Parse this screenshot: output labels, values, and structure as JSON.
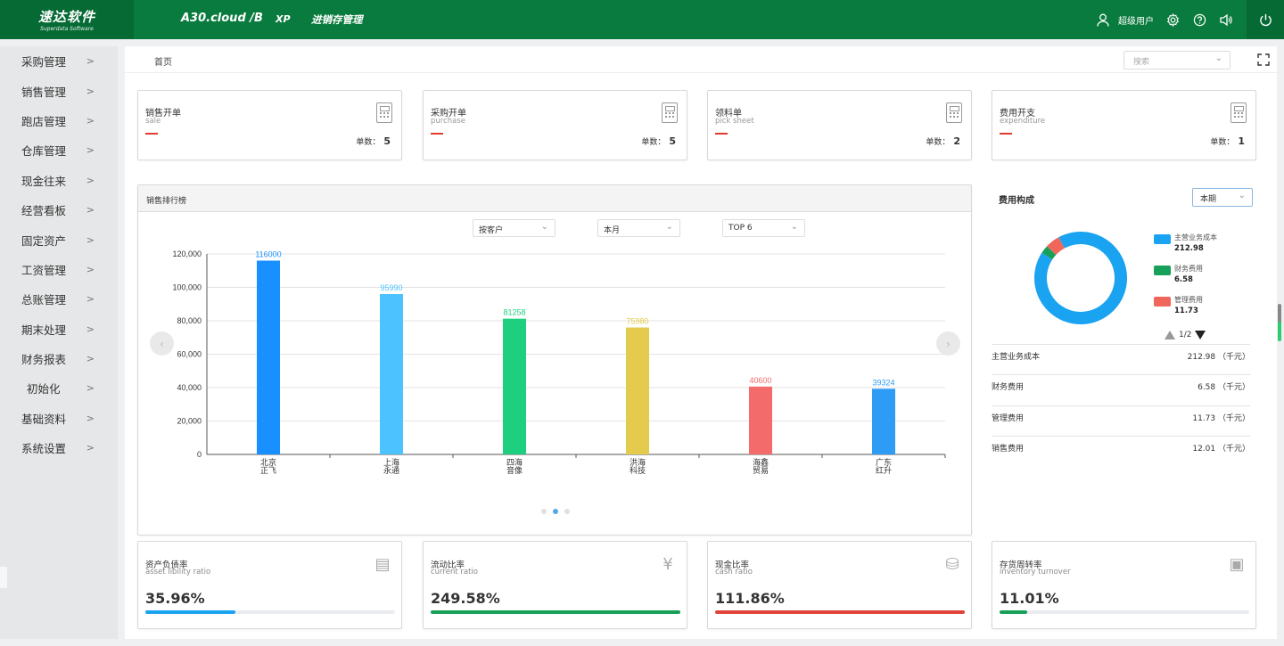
{
  "header": {
    "logo_cn": "速达软件",
    "logo_en": "Superdata Software",
    "product": "A30.cloud /B",
    "edition": "XP",
    "module": "进销存管理",
    "user": "超级用户"
  },
  "sidebar": {
    "items": [
      {
        "label": "采购管理"
      },
      {
        "label": "销售管理"
      },
      {
        "label": "跑店管理"
      },
      {
        "label": "仓库管理"
      },
      {
        "label": "现金往来"
      },
      {
        "label": "经营看板"
      },
      {
        "label": "固定资产"
      },
      {
        "label": "工资管理"
      },
      {
        "label": "总账管理"
      },
      {
        "label": "期末处理"
      },
      {
        "label": "财务报表"
      },
      {
        "label": "初始化"
      },
      {
        "label": "基础资料"
      },
      {
        "label": "系统设置"
      }
    ]
  },
  "breadcrumb": "首页",
  "search": {
    "placeholder": "搜索"
  },
  "kpis": [
    {
      "title": "销售开单",
      "subtitle": "sale",
      "count_label": "单数：",
      "count": "5"
    },
    {
      "title": "采购开单",
      "subtitle": "purchase",
      "count_label": "单数：",
      "count": "5"
    },
    {
      "title": "领料单",
      "subtitle": "pick sheet",
      "count_label": "单数：",
      "count": "2"
    },
    {
      "title": "费用开支",
      "subtitle": "expenditure",
      "count_label": "单数：",
      "count": "1"
    }
  ],
  "ranking": {
    "title": "销售排行榜",
    "filter_by": "按客户",
    "filter_period": "本月",
    "filter_top": "TOP 6"
  },
  "chart_data": {
    "type": "bar",
    "categories": [
      "北京\n正飞",
      "上海\n永通",
      "四海\n音像",
      "洪海\n科技",
      "海鑫\n贸易",
      "广东\n红升"
    ],
    "values": [
      116000,
      95990,
      81258,
      75980,
      40600,
      39324
    ],
    "bar_colors": [
      "#1890ff",
      "#4cc3ff",
      "#1ecf80",
      "#e5cb4d",
      "#f46b6b",
      "#2e9cf5"
    ],
    "ylim": [
      0,
      120000
    ],
    "yticks": [
      "0",
      "20,000",
      "40,000",
      "60,000",
      "80,000",
      "100,000",
      "120,000"
    ],
    "grid": true
  },
  "fees": {
    "title": "费用构成",
    "period": "本期",
    "pager": "1/2",
    "legend": [
      {
        "name": "主营业务成本",
        "value": "212.98",
        "color": "#1aa3f0"
      },
      {
        "name": "财务费用",
        "value": "6.58",
        "color": "#17a05a"
      },
      {
        "name": "管理费用",
        "value": "11.73",
        "color": "#f0665a"
      }
    ],
    "donut_values": [
      212.98,
      6.58,
      11.73
    ],
    "rows": [
      {
        "label": "主营业务成本",
        "value": "212.98 （千元）"
      },
      {
        "label": "财务费用",
        "value": "6.58 （千元）"
      },
      {
        "label": "管理费用",
        "value": "11.73 （千元）"
      },
      {
        "label": "销售费用",
        "value": "12.01 （千元）"
      }
    ]
  },
  "ratios": [
    {
      "title": "资产负债率",
      "subtitle": "asset libility ratio",
      "value": "35.96%",
      "percent": 35.96,
      "color": "#1aa3f0"
    },
    {
      "title": "流动比率",
      "subtitle": "current ratio",
      "value": "249.58%",
      "percent": 100,
      "color": "#17a05a"
    },
    {
      "title": "现金比率",
      "subtitle": "cash ratio",
      "value": "111.86%",
      "percent": 100,
      "color": "#e0433a"
    },
    {
      "title": "存货周转率",
      "subtitle": "inventory turnover",
      "value": "11.01%",
      "percent": 11.01,
      "color": "#17a05a"
    }
  ]
}
